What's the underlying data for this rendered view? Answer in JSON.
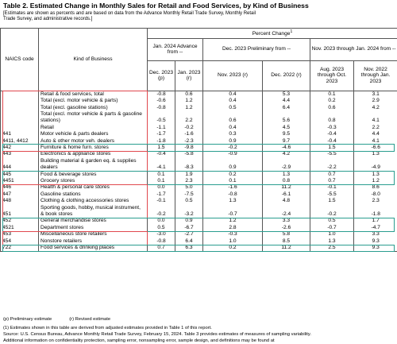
{
  "header": {
    "title": "Table 2.  Estimated Change in Monthly Sales for Retail and Food Services, by Kind of Business",
    "subtitle": "[Estimates are shown as percents and are based on data from the Advance Monthly Retail Trade Survey,  Monthly Retail Trade Survey, and administrative records.]"
  },
  "table": {
    "columns": {
      "naics": "NAICS code",
      "kind": "Kind of Business",
      "percent_change": "Percent Change",
      "percent_change_note": "1",
      "group1": "Jan. 2024 Advance from --",
      "group2": "Dec. 2023 Preliminary from --",
      "group3": "Nov. 2023 through Jan. 2024 from --",
      "sub": [
        "Dec. 2023 (p)",
        "Jan. 2023 (r)",
        "Nov. 2023 (r)",
        "Dec. 2022 (r)",
        "Aug. 2023 through Oct. 2023",
        "Nov. 2022 through Jan. 2023"
      ]
    },
    "rows": [
      [
        "",
        "Retail & food services, total",
        "-0.8",
        "0.6",
        "0.4",
        "5.3",
        "0.1",
        "3.1"
      ],
      [
        "",
        "Total (excl. motor vehicle & parts)",
        "-0.6",
        "1.2",
        "0.4",
        "4.4",
        "0.2",
        "2.9"
      ],
      [
        "",
        "Total (excl. gasoline stations)",
        "-0.8",
        "1.2",
        "0.5",
        "6.4",
        "0.6",
        "4.2"
      ],
      [
        "",
        "Total (excl. motor vehicle & parts & gasoline stations)",
        "-0.5",
        "2.2",
        "0.6",
        "5.6",
        "0.8",
        "4.1"
      ],
      [
        "",
        "Retail",
        "-1.1",
        "-0.2",
        "0.4",
        "4.5",
        "-0.3",
        "2.2"
      ],
      [
        "441",
        "Motor vehicle & parts dealers",
        "-1.7",
        "-1.6",
        "0.3",
        "9.5",
        "-0.4",
        "4.4"
      ],
      [
        "4411, 4412",
        "Auto & other motor veh. dealers",
        "-1.8",
        "-2.3",
        "0.9",
        "9.7",
        "-0.4",
        "4.1"
      ],
      [
        "442",
        "Furniture & home furn. stores",
        "1.5",
        "-9.8",
        "-0.2",
        "-4.6",
        "1.5",
        "-6.6"
      ],
      [
        "443",
        "Electronics & appliance stores",
        "-0.4",
        "-5.8",
        "-0.9",
        "4.2",
        "-5.5",
        "1.3"
      ],
      [
        "444",
        "Building material & garden eq. & supplies dealers",
        "-4.1",
        "-8.3",
        "0.9",
        "-2.9",
        "-2.2",
        "-4.9"
      ],
      [
        "445",
        "Food & beverage stores",
        "0.1",
        "1.9",
        "0.2",
        "1.3",
        "0.7",
        "1.3"
      ],
      [
        "4451",
        "Grocery stores",
        "0.1",
        "2.3",
        "0.1",
        "0.8",
        "0.7",
        "1.2"
      ],
      [
        "446",
        "Health & personal care stores",
        "0.0",
        "5.0",
        "-1.6",
        "11.2",
        "-0.1",
        "8.6"
      ],
      [
        "447",
        "Gasoline stations",
        "-1.7",
        "-7.5",
        "-0.8",
        "-6.1",
        "-5.5",
        "-8.0"
      ],
      [
        "448",
        "Clothing & clothing accessories stores",
        "-0.1",
        "0.5",
        "1.3",
        "4.8",
        "1.5",
        "2.3"
      ],
      [
        "451",
        "Sporting goods, hobby, musical instrument, & book stores",
        "-0.2",
        "-3.2",
        "-0.7",
        "-2.4",
        "-0.2",
        "-1.8"
      ],
      [
        "452",
        "General merchandise stores",
        "0.0",
        "0.9",
        "1.2",
        "3.3",
        "0.5",
        "1.7"
      ],
      [
        "4521",
        "Department stores",
        "0.5",
        "-6.7",
        "2.8",
        "-2.6",
        "-0.7",
        "-4.7"
      ],
      [
        "453",
        "Miscellaneous store retailers",
        "-3.0",
        "-2.7",
        "-0.3",
        "5.8",
        "1.0",
        "3.3"
      ],
      [
        "454",
        "Nonstore retailers",
        "-0.8",
        "6.4",
        "1.0",
        "8.5",
        "1.3",
        "9.3"
      ],
      [
        "722",
        "Food services & drinking places",
        "0.7",
        "6.3",
        "0.2",
        "11.2",
        "2.5",
        "9.3"
      ]
    ]
  },
  "footer": {
    "legend_p": "(p)  Preliminary estimate",
    "legend_r": "(r)  Revised estimate",
    "notes": [
      "(1)  Estimates shown in this table are derived from adjusted estimates provided  in Table 1 of this report.",
      "Source:  U.S. Census Bureau, Advance Monthly Retail Trade Survey, February 15, 2024. Table 3 provides estimates of measures of sampling variability.",
      "Additional information on confidentiality protection, sampling error, nonsampling error, sample design, and definitions may be found at"
    ]
  }
}
